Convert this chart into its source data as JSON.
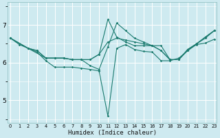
{
  "xlabel": "Humidex (Indice chaleur)",
  "background_color": "#ceeaf0",
  "grid_color": "#ffffff",
  "line_color": "#1a7a6e",
  "x_ticks": [
    0,
    1,
    2,
    3,
    4,
    5,
    6,
    7,
    8,
    9,
    10,
    11,
    12,
    13,
    14,
    15,
    16,
    17,
    18,
    19,
    20,
    21,
    22,
    23
  ],
  "y_ticks": [
    5,
    6,
    7
  ],
  "ylim": [
    4.4,
    7.6
  ],
  "xlim": [
    -0.3,
    23.3
  ],
  "series": [
    {
      "x": [
        0,
        1,
        2,
        3,
        4,
        5,
        6,
        7,
        8,
        9,
        10,
        11,
        12,
        13,
        14,
        15,
        16,
        17,
        18,
        19,
        20,
        21,
        22,
        23
      ],
      "y": [
        6.65,
        6.48,
        6.38,
        6.28,
        6.05,
        5.88,
        5.88,
        5.88,
        5.85,
        5.82,
        5.78,
        4.58,
        6.38,
        6.48,
        6.35,
        6.3,
        6.28,
        6.05,
        6.05,
        6.12,
        6.32,
        6.48,
        6.52,
        6.62
      ]
    },
    {
      "x": [
        0,
        2,
        3,
        4,
        5,
        6,
        7,
        8,
        9,
        10,
        11,
        12,
        13,
        14,
        15,
        16,
        17,
        18,
        19,
        20,
        21,
        22,
        23
      ],
      "y": [
        6.65,
        6.38,
        6.32,
        6.12,
        6.12,
        6.12,
        6.08,
        6.08,
        5.92,
        5.82,
        6.42,
        7.05,
        6.85,
        6.65,
        6.55,
        6.45,
        6.32,
        6.08,
        6.08,
        6.35,
        6.5,
        6.68,
        6.85
      ]
    },
    {
      "x": [
        0,
        2,
        3,
        4,
        5,
        6,
        7,
        8,
        9,
        10,
        11,
        12,
        13,
        14,
        15,
        16,
        17,
        18,
        19,
        20,
        21,
        22,
        23
      ],
      "y": [
        6.65,
        6.38,
        6.32,
        6.12,
        6.12,
        6.12,
        6.08,
        6.08,
        6.08,
        6.22,
        7.15,
        6.68,
        6.55,
        6.45,
        6.45,
        6.45,
        6.45,
        6.08,
        6.08,
        6.35,
        6.5,
        6.68,
        6.85
      ]
    },
    {
      "x": [
        0,
        2,
        4,
        5,
        6,
        7,
        8,
        9,
        10,
        11,
        12,
        13,
        14,
        15,
        16,
        17,
        18,
        19,
        20,
        21,
        22,
        23
      ],
      "y": [
        6.65,
        6.38,
        6.12,
        6.12,
        6.12,
        6.08,
        6.08,
        6.08,
        6.22,
        6.55,
        6.65,
        6.6,
        6.55,
        6.5,
        6.45,
        6.32,
        6.08,
        6.08,
        6.32,
        6.5,
        6.65,
        6.85
      ]
    }
  ]
}
